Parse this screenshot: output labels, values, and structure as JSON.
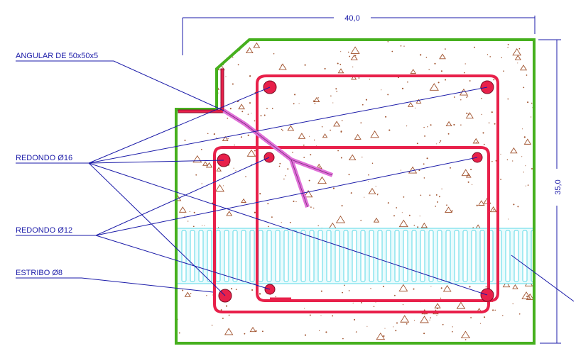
{
  "labels": {
    "angular": "ANGULAR DE 50x50x5",
    "redondo16": "REDONDO Ø16",
    "redondo12": "REDONDO Ø12",
    "estribo": "ESTRIBO Ø8"
  },
  "dimensions": {
    "width": "40,0",
    "height": "35,0"
  },
  "colors": {
    "outline": "#46b01e",
    "rebar": "#e8204a",
    "angle": "#e070d8",
    "leader": "#1a1aa8",
    "stirrup_band": "#5ad8e6",
    "concrete_speckle": "#a0522d"
  }
}
